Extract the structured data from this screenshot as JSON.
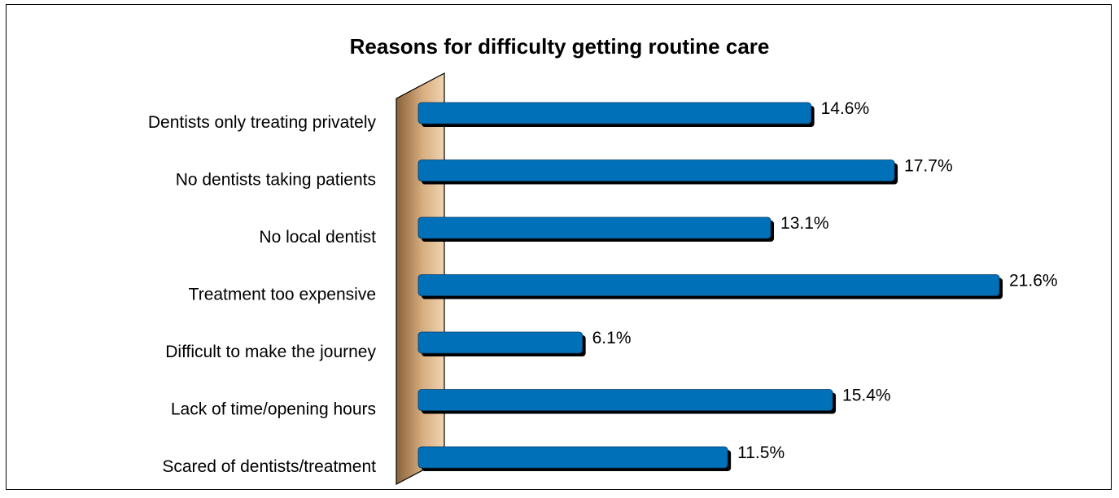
{
  "chart_data": {
    "type": "bar",
    "orientation": "horizontal",
    "title": "Reasons for difficulty getting routine care",
    "categories": [
      "Dentists only treating privately",
      "No dentists taking patients",
      "No local dentist",
      "Treatment too expensive",
      "Difficult to make the journey",
      "Lack of time/opening hours",
      "Scared of dentists/treatment"
    ],
    "values": [
      14.6,
      17.7,
      13.1,
      21.6,
      6.1,
      15.4,
      11.5
    ],
    "value_labels": [
      "14.6%",
      "17.7%",
      "13.1%",
      "21.6%",
      "6.1%",
      "15.4%",
      "11.5%"
    ],
    "unit": "%",
    "xlim": [
      0,
      21.6
    ],
    "grid": false,
    "legend": "none",
    "colors": {
      "bar": "#0070b8",
      "bar_shadow": "#000000",
      "wall_light": "#f0d4b0",
      "wall_dark": "#8a6238",
      "frame": "#000000"
    }
  }
}
